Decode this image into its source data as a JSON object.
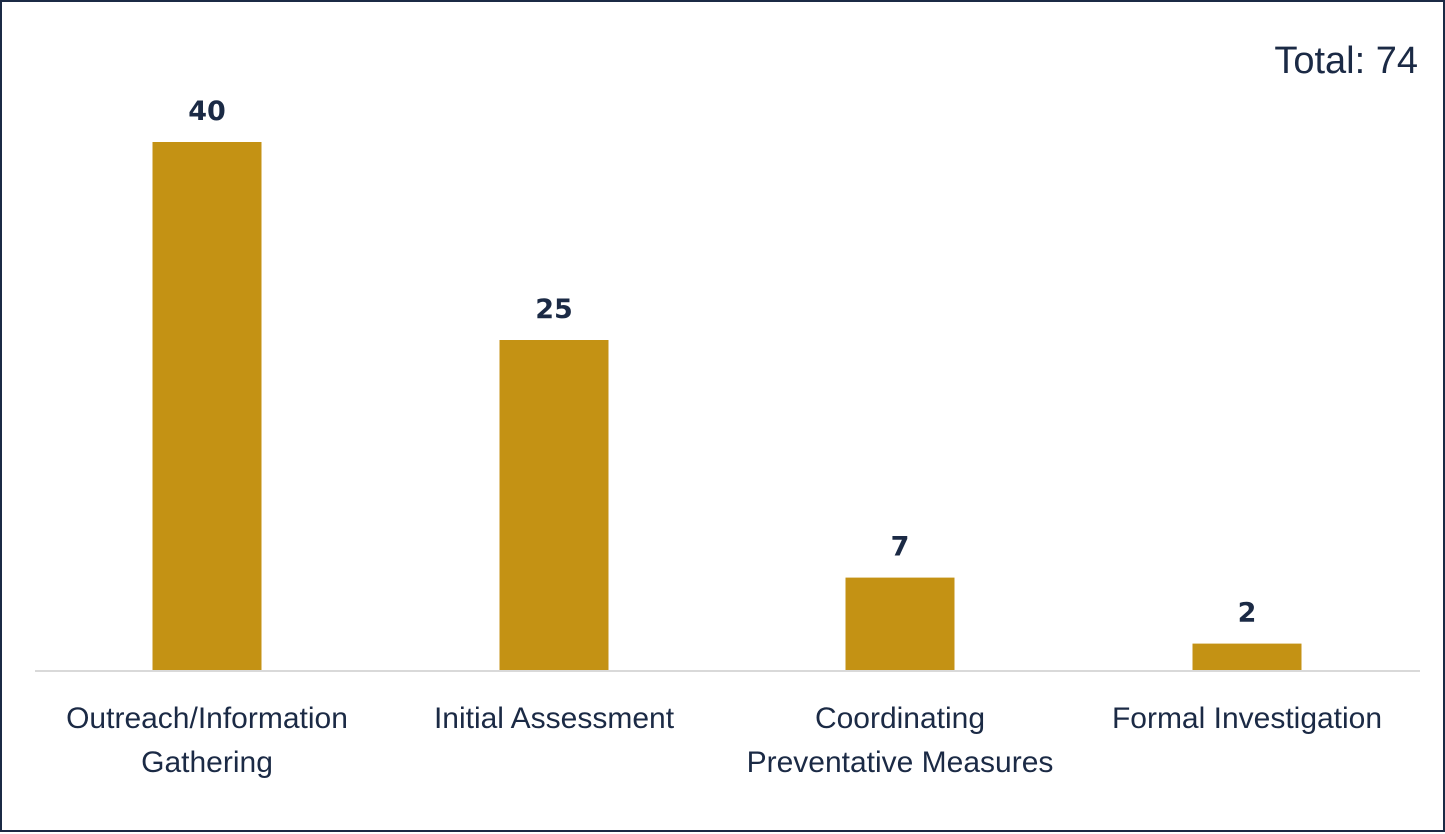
{
  "chart_data": {
    "type": "bar",
    "annotation": "Total: 74",
    "categories": [
      [
        "Outreach/Information",
        "Gathering"
      ],
      [
        "Initial Assessment"
      ],
      [
        "Coordinating",
        "Preventative Measures"
      ],
      [
        "Formal Investigation"
      ]
    ],
    "values": [
      40,
      25,
      7,
      2
    ],
    "ylim": [
      0,
      40
    ],
    "grid": false,
    "bar_color": "#c49214",
    "text_color": "#1b2a45",
    "axis_color": "#d9d9d9"
  }
}
